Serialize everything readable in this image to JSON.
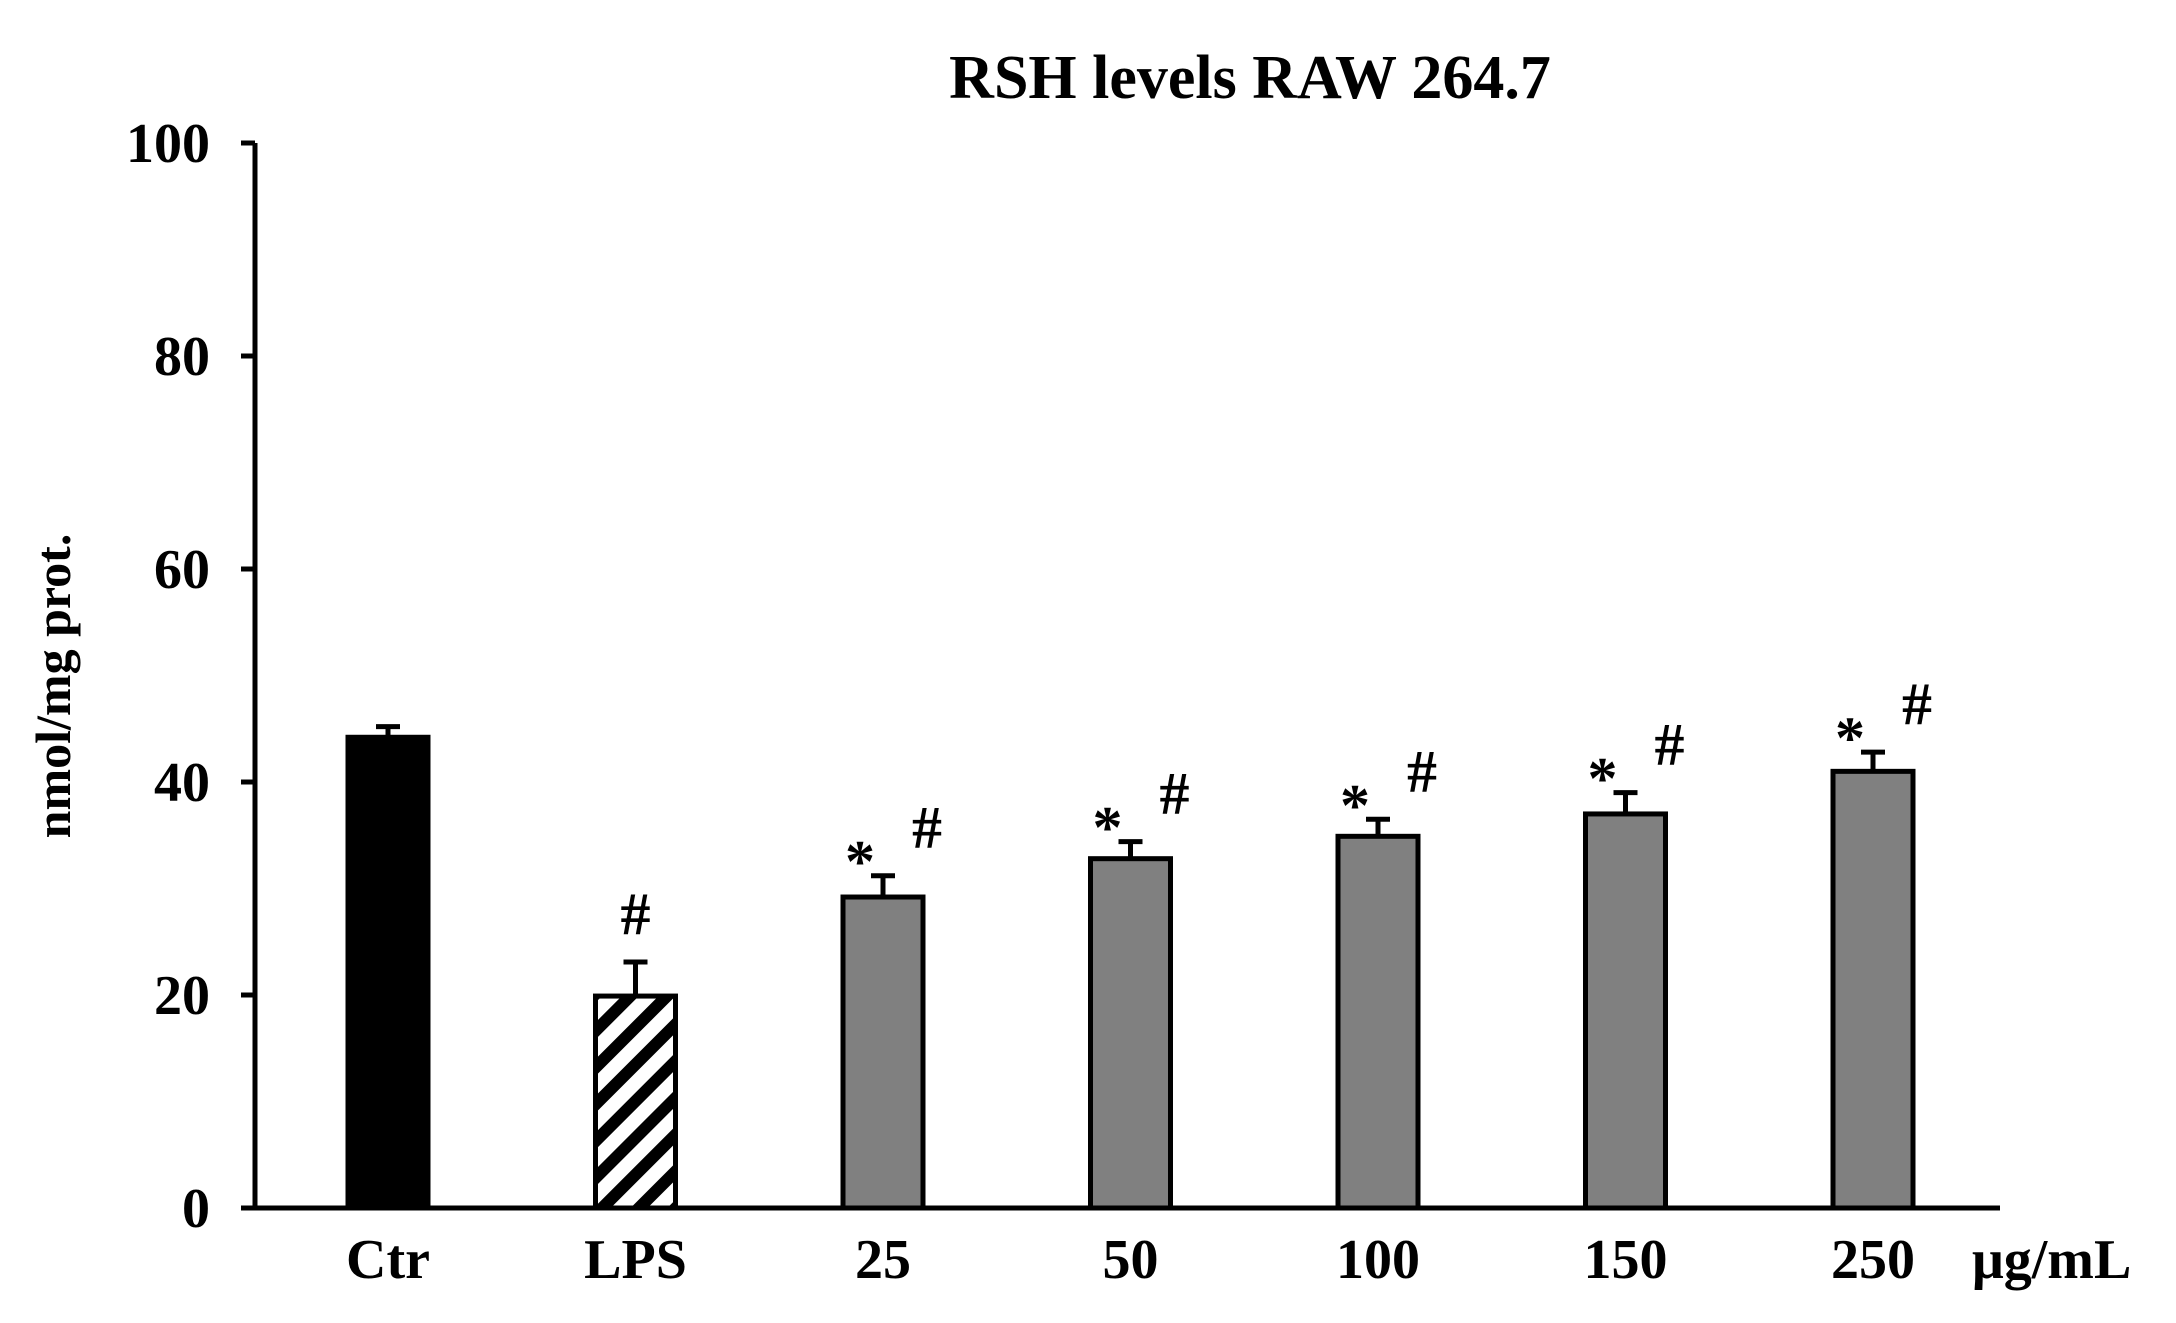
{
  "chart_data": {
    "type": "bar",
    "title": "RSH levels RAW 264.7",
    "ylabel": "nmol/mg prot.",
    "xlabel": "",
    "x_unit_label": "μg/mL",
    "ylim": [
      0,
      100
    ],
    "yticks": [
      "0",
      "20",
      "40",
      "60",
      "80",
      "100"
    ],
    "grid": false,
    "legend": "none",
    "categories": [
      "Ctr",
      "LPS",
      "25",
      "50",
      "100",
      "150",
      "250"
    ],
    "values": [
      44.2,
      19.9,
      29.2,
      32.8,
      34.9,
      37.0,
      41.0
    ],
    "errors": [
      1.0,
      3.2,
      2.0,
      1.6,
      1.6,
      2.0,
      1.8
    ],
    "annotations": [
      {
        "star": "",
        "hash": ""
      },
      {
        "star": "",
        "hash": "#"
      },
      {
        "star": "*",
        "hash": "#"
      },
      {
        "star": "*",
        "hash": "#"
      },
      {
        "star": "*",
        "hash": "#"
      },
      {
        "star": "*",
        "hash": "#"
      },
      {
        "star": "*",
        "hash": "#"
      }
    ],
    "bar_styles": [
      "solid-black",
      "hatched",
      "solid-gray",
      "solid-gray",
      "solid-gray",
      "solid-gray",
      "solid-gray"
    ],
    "colors": {
      "control": "#000000",
      "treatment": "#808080",
      "hatch_line": "#000000",
      "hatch_bg": "#ffffff",
      "axis": "#000000"
    }
  }
}
